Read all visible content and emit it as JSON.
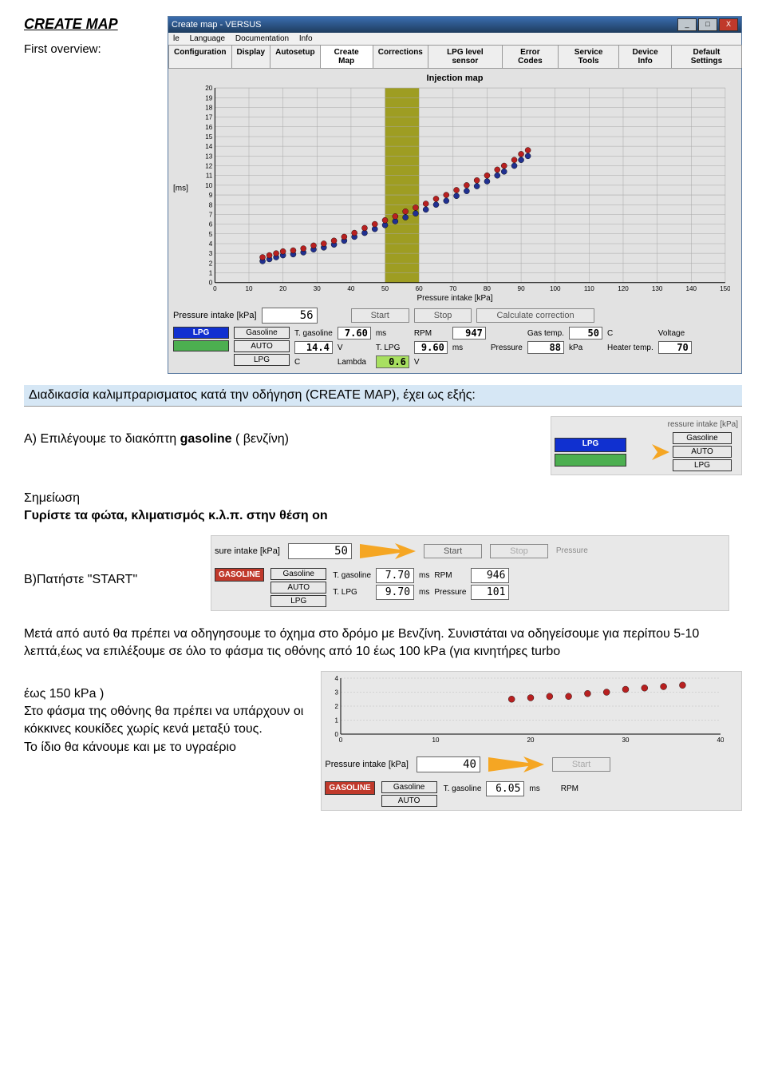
{
  "header": {
    "title": "CREATE MAP",
    "subtitle": "First overview:"
  },
  "window": {
    "title": "Create map - VERSUS",
    "menu": [
      "le",
      "Language",
      "Documentation",
      "Info"
    ],
    "tabs": [
      "Configuration",
      "Display",
      "Autosetup",
      "Create Map",
      "Corrections",
      "LPG level sensor",
      "Error Codes",
      "Service Tools",
      "Device Info",
      "Default Settings"
    ],
    "selected_tab_index": 3,
    "chart": {
      "title": "Injection map",
      "ylabel": "[ms]",
      "xlabel": "Pressure intake [kPa]",
      "ylim": [
        0,
        20
      ],
      "ytick_step": 1,
      "xlim": [
        0,
        150
      ],
      "xtick_step": 10,
      "grid_color": "#a8a8a8",
      "band_x": [
        50,
        60
      ],
      "band_color": "#9e9d22",
      "red_color": "#b82020",
      "blue_color": "#203090",
      "red_points": [
        [
          14,
          2.6
        ],
        [
          16,
          2.8
        ],
        [
          18,
          3.0
        ],
        [
          20,
          3.2
        ],
        [
          23,
          3.3
        ],
        [
          26,
          3.5
        ],
        [
          29,
          3.8
        ],
        [
          32,
          4.0
        ],
        [
          35,
          4.3
        ],
        [
          38,
          4.7
        ],
        [
          41,
          5.1
        ],
        [
          44,
          5.6
        ],
        [
          47,
          6.0
        ],
        [
          50,
          6.4
        ],
        [
          53,
          6.8
        ],
        [
          56,
          7.3
        ],
        [
          59,
          7.7
        ],
        [
          62,
          8.1
        ],
        [
          65,
          8.6
        ],
        [
          68,
          9.0
        ],
        [
          71,
          9.5
        ],
        [
          74,
          10.0
        ],
        [
          77,
          10.5
        ],
        [
          80,
          11.0
        ],
        [
          83,
          11.6
        ],
        [
          85,
          12.0
        ],
        [
          88,
          12.6
        ],
        [
          90,
          13.2
        ],
        [
          92,
          13.6
        ]
      ],
      "blue_points": [
        [
          14,
          2.2
        ],
        [
          16,
          2.4
        ],
        [
          18,
          2.6
        ],
        [
          20,
          2.8
        ],
        [
          23,
          2.9
        ],
        [
          26,
          3.1
        ],
        [
          29,
          3.4
        ],
        [
          32,
          3.6
        ],
        [
          35,
          3.9
        ],
        [
          38,
          4.3
        ],
        [
          41,
          4.7
        ],
        [
          44,
          5.1
        ],
        [
          47,
          5.5
        ],
        [
          50,
          5.9
        ],
        [
          53,
          6.3
        ],
        [
          56,
          6.7
        ],
        [
          59,
          7.1
        ],
        [
          62,
          7.5
        ],
        [
          65,
          8.0
        ],
        [
          68,
          8.4
        ],
        [
          71,
          8.9
        ],
        [
          74,
          9.4
        ],
        [
          77,
          9.9
        ],
        [
          80,
          10.4
        ],
        [
          83,
          11.0
        ],
        [
          85,
          11.4
        ],
        [
          88,
          12.0
        ],
        [
          90,
          12.6
        ],
        [
          92,
          13.0
        ]
      ]
    },
    "pressure_label": "Pressure intake [kPa]",
    "pressure_value": "56",
    "buttons": {
      "start": "Start",
      "stop": "Stop",
      "calc": "Calculate correction"
    },
    "mode": {
      "lpg": "LPG",
      "gasoline": "Gasoline",
      "auto": "AUTO",
      "lpg2": "LPG"
    },
    "stats": {
      "t_gasoline_l": "T. gasoline",
      "t_gasoline_v": "7.60",
      "t_gasoline_u": "ms",
      "t_lpg_l": "T. LPG",
      "t_lpg_v": "9.60",
      "t_lpg_u": "ms",
      "rpm_l": "RPM",
      "rpm_v": "947",
      "pressure_l": "Pressure",
      "pressure_v": "88",
      "pressure_u": "kPa",
      "gastemp_l": "Gas temp.",
      "gastemp_v": "50",
      "gastemp_u": "C",
      "heatertemp_l": "Heater temp.",
      "heatertemp_v": "70",
      "heatertemp_u": "C",
      "voltage_l": "Voltage",
      "voltage_v": "14.4",
      "voltage_u": "V",
      "lambda_l": "Lambda",
      "lambda_v": "0.6",
      "lambda_u": "V"
    }
  },
  "highlight": "Διαδικασία καλιμπραρισματος κατά την οδήγηση (CREATE MAP), έχει ως εξής:",
  "step_a": {
    "label": "A) Eπιλέγουμε το διακόπτη ",
    "bold": "gasoline",
    "tail": "  ( βενζίνη)"
  },
  "snippet_a": {
    "header": "ressure intake [kPa]",
    "lpg": "LPG",
    "gasoline": "Gasoline",
    "auto": "AUTO",
    "lpg2": "LPG",
    "blue": "#1030d0",
    "green": "#4caf50"
  },
  "note": {
    "l1": "Σημείωση",
    "l2": "Γυρίστε τα φώτα, κλιματισμός κ.λ.π. στην θέση on"
  },
  "step_b_label": "B)Πατήστε  \"START\"",
  "snippet_b": {
    "pressure_label_partial": "sure intake [kPa]",
    "pressure_v": "50",
    "start": "Start",
    "stop": "Stop",
    "pressure_word": "Pressure",
    "mode_red": "GASOLINE",
    "t_gasoline": "7.70",
    "t_lpg": "9.70",
    "rpm": "946",
    "pressure": "101"
  },
  "para": {
    "p1": " Μετά από αυτό θα πρέπει να οδηγησουμε το όχημα στο  δρόμο με Βενζίνη. Συνιστάται να οδηγείσουμε  για περίπου 5-10 λεπτά,έως να επιλέξουμε σε όλο το φάσμα τις οθόνης από 10 έως 100 kPa (για κινητήρες turbo",
    "p2": "έως 150 kPa )",
    "p3": "Στο φάσμα της οθόνης θα πρέπει να υπάρχουν οι κόκκινες κουκίδες χωρίς κενά μεταξύ τους.",
    "p4": "Το ίδιο θα κάνουμε και με το υγραέριο"
  },
  "snippet_c": {
    "pressure_label": "Pressure intake [kPa]",
    "pressure_v": "40",
    "start": "Start",
    "mode_red": "GASOLINE",
    "gasoline": "Gasoline",
    "auto": "AUTO",
    "t_gasoline_l": "T. gasoline",
    "t_gasoline_v": "6.05",
    "rpm_l": "RPM",
    "mini_chart": {
      "ylim": [
        0,
        4
      ],
      "xlim": [
        0,
        40
      ],
      "red_color": "#b82020",
      "points": [
        [
          18,
          2.5
        ],
        [
          20,
          2.6
        ],
        [
          22,
          2.7
        ],
        [
          24,
          2.7
        ],
        [
          26,
          2.9
        ],
        [
          28,
          3.0
        ],
        [
          30,
          3.2
        ],
        [
          32,
          3.3
        ],
        [
          34,
          3.4
        ],
        [
          36,
          3.5
        ]
      ]
    }
  },
  "colors": {
    "arrow": "#f5a623"
  }
}
